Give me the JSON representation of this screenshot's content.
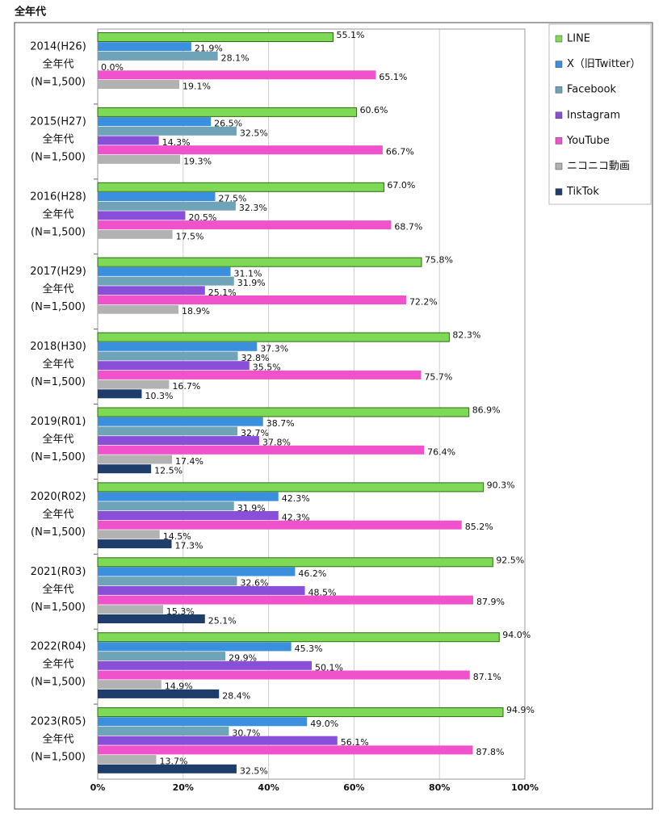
{
  "chart_data": {
    "type": "hbar",
    "title": "全年代",
    "categories": [
      [
        "2014(H26)",
        "全年代",
        "(N=1,500)"
      ],
      [
        "2015(H27)",
        "全年代",
        "(N=1,500)"
      ],
      [
        "2016(H28)",
        "全年代",
        "(N=1,500)"
      ],
      [
        "2017(H29)",
        "全年代",
        "(N=1,500)"
      ],
      [
        "2018(H30)",
        "全年代",
        "(N=1,500)"
      ],
      [
        "2019(R01)",
        "全年代",
        "(N=1,500)"
      ],
      [
        "2020(R02)",
        "全年代",
        "(N=1,500)"
      ],
      [
        "2021(R03)",
        "全年代",
        "(N=1,500)"
      ],
      [
        "2022(R04)",
        "全年代",
        "(N=1,500)"
      ],
      [
        "2023(R05)",
        "全年代",
        "(N=1,500)"
      ]
    ],
    "series": [
      {
        "name": "LINE",
        "color": "#7ed957",
        "values": [
          55.1,
          60.6,
          67.0,
          75.8,
          82.3,
          86.9,
          90.3,
          92.5,
          94.0,
          94.9
        ],
        "value_labels": [
          "55.1%",
          "60.6%",
          "67.0%",
          "75.8%",
          "82.3%",
          "86.9%",
          "90.3%",
          "92.5%",
          "94.0%",
          "94.9%"
        ]
      },
      {
        "name": "X（旧Twitter）",
        "color": "#3a8fde",
        "values": [
          21.9,
          26.5,
          27.5,
          31.1,
          37.3,
          38.7,
          42.3,
          46.2,
          45.3,
          49.0
        ],
        "value_labels": [
          "21.9%",
          "26.5%",
          "27.5%",
          "31.1%",
          "37.3%",
          "38.7%",
          "42.3%",
          "46.2%",
          "45.3%",
          "49.0%"
        ]
      },
      {
        "name": "Facebook",
        "color": "#6fa3b8",
        "values": [
          28.1,
          32.5,
          32.3,
          31.9,
          32.8,
          32.7,
          31.9,
          32.6,
          29.9,
          30.7
        ],
        "value_labels": [
          "28.1%",
          "32.5%",
          "32.3%",
          "31.9%",
          "32.8%",
          "32.7%",
          "31.9%",
          "32.6%",
          "29.9%",
          "30.7%"
        ]
      },
      {
        "name": "Instagram",
        "color": "#8a4fd8",
        "values": [
          0.0,
          14.3,
          20.5,
          25.1,
          35.5,
          37.8,
          42.3,
          48.5,
          50.1,
          56.1
        ],
        "value_labels": [
          "0.0%",
          "14.3%",
          "20.5%",
          "25.1%",
          "35.5%",
          "37.8%",
          "42.3%",
          "48.5%",
          "50.1%",
          "56.1%"
        ]
      },
      {
        "name": "YouTube",
        "color": "#f052cc",
        "values": [
          65.1,
          66.7,
          68.7,
          72.2,
          75.7,
          76.4,
          85.2,
          87.9,
          87.1,
          87.8
        ],
        "value_labels": [
          "65.1%",
          "66.7%",
          "68.7%",
          "72.2%",
          "75.7%",
          "76.4%",
          "85.2%",
          "87.9%",
          "87.1%",
          "87.8%"
        ]
      },
      {
        "name": "ニコニコ動画",
        "color": "#b2b2b2",
        "values": [
          19.1,
          19.3,
          17.5,
          18.9,
          16.7,
          17.4,
          14.5,
          15.3,
          14.9,
          13.7
        ],
        "value_labels": [
          "19.1%",
          "19.3%",
          "17.5%",
          "18.9%",
          "16.7%",
          "17.4%",
          "14.5%",
          "15.3%",
          "14.9%",
          "13.7%"
        ]
      },
      {
        "name": "TikTok",
        "color": "#1e3d6b",
        "values": [
          null,
          null,
          null,
          null,
          10.3,
          12.5,
          17.3,
          25.1,
          28.4,
          32.5
        ],
        "value_labels": [
          null,
          null,
          null,
          null,
          "10.3%",
          "12.5%",
          "17.3%",
          "25.1%",
          "28.4%",
          "32.5%"
        ]
      }
    ],
    "xlim": [
      0,
      100
    ],
    "xticks": [
      {
        "value": 0,
        "label": "0%"
      },
      {
        "value": 20,
        "label": "20%"
      },
      {
        "value": 40,
        "label": "40%"
      },
      {
        "value": 60,
        "label": "60%"
      },
      {
        "value": 80,
        "label": "80%"
      },
      {
        "value": 100,
        "label": "100%"
      }
    ],
    "grid": true,
    "legend": "top-right"
  }
}
